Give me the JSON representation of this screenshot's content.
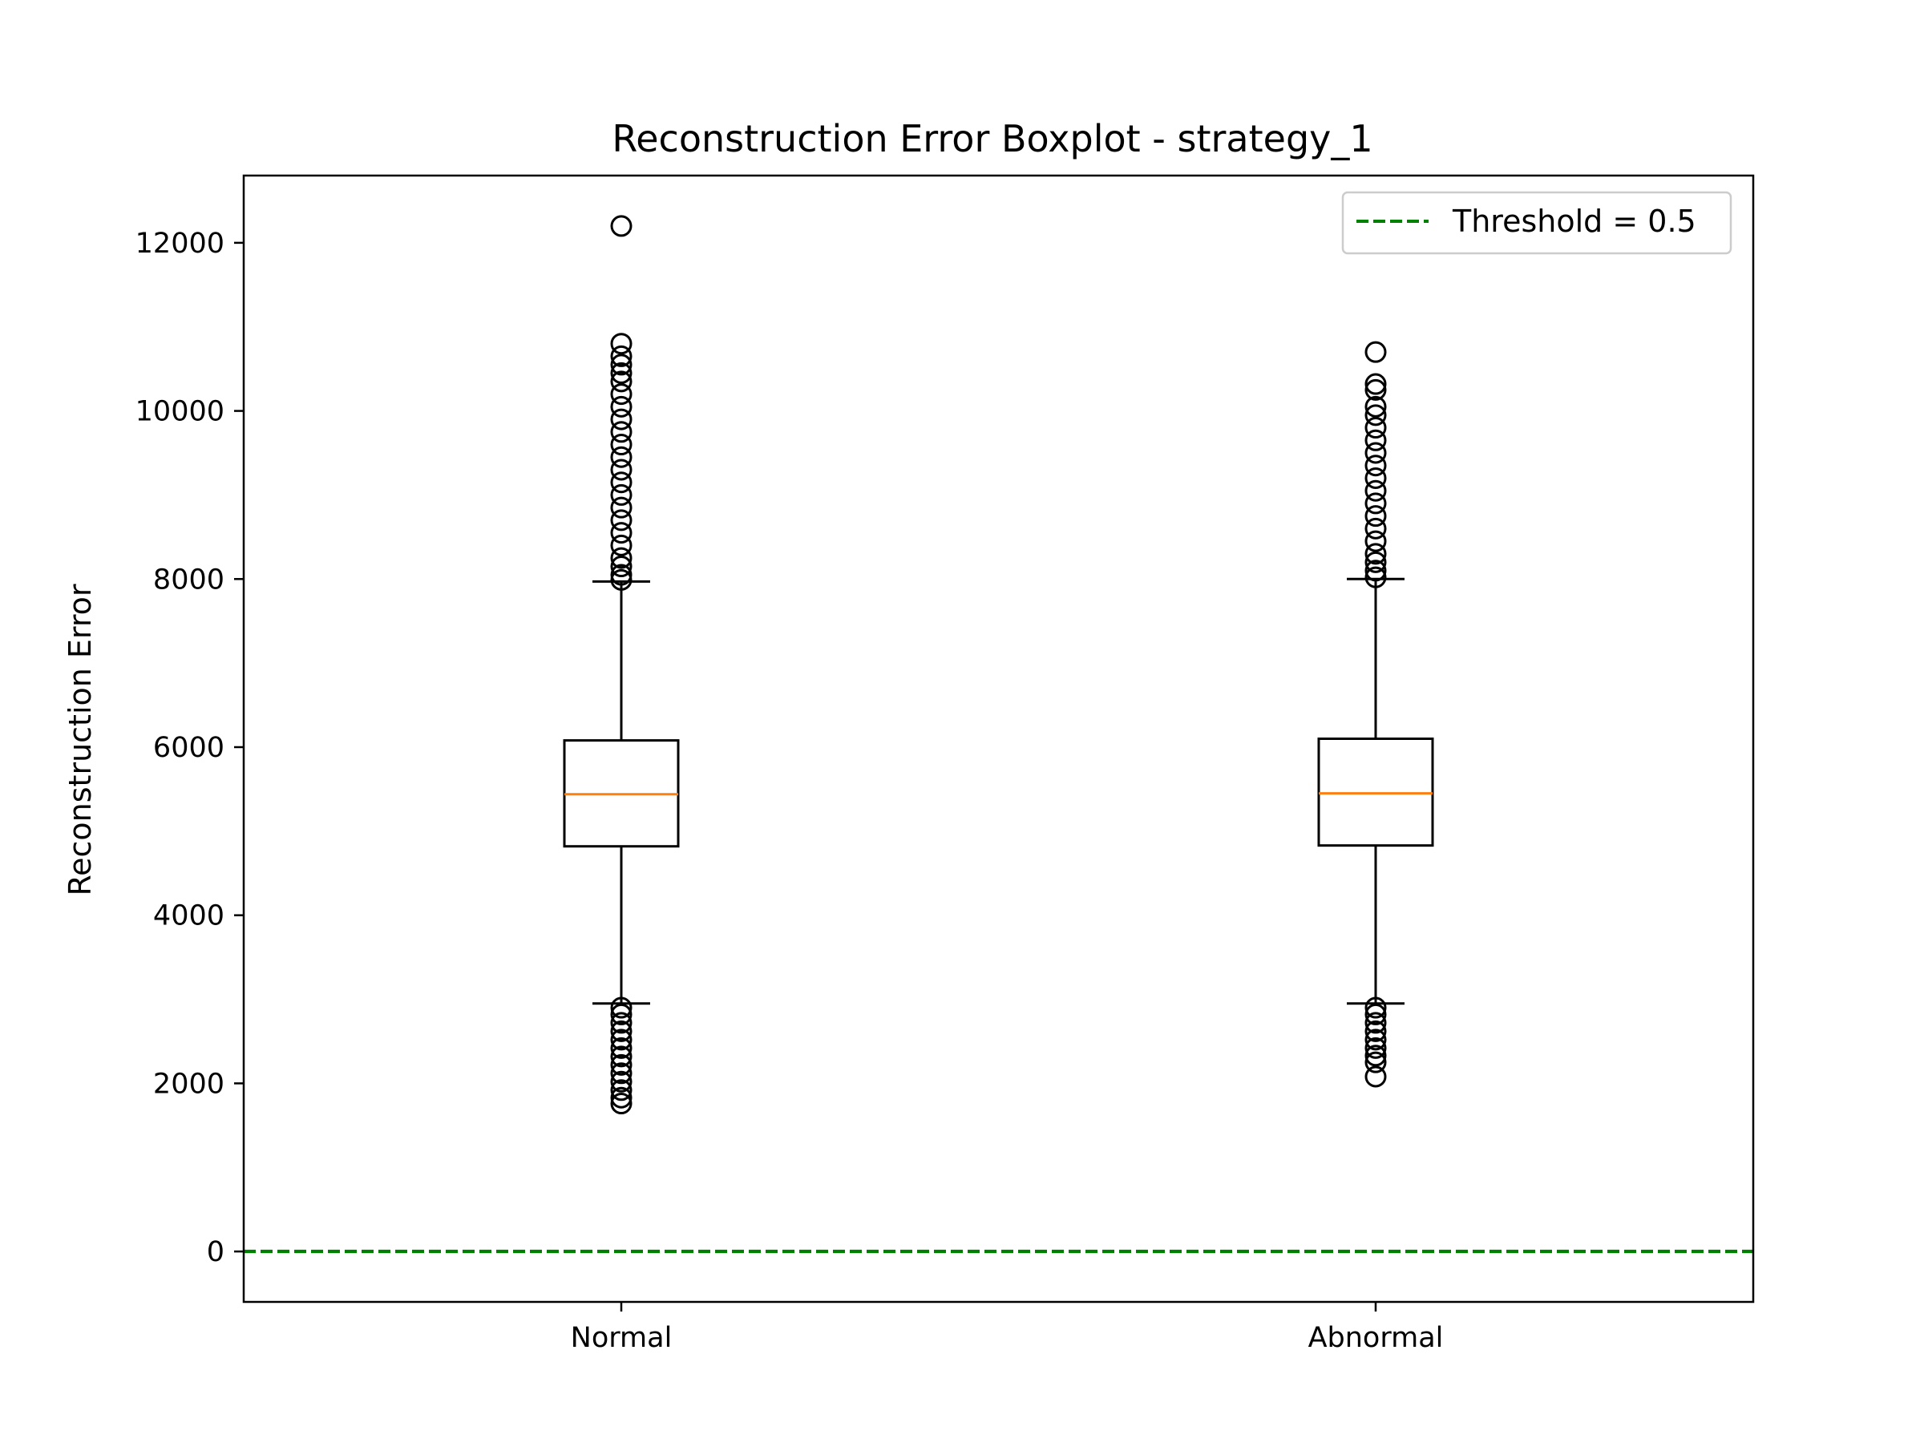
{
  "chart_data": {
    "type": "boxplot",
    "title": "Reconstruction Error Boxplot - strategy_1",
    "xlabel": "",
    "ylabel": "Reconstruction Error",
    "ylim": [
      -600,
      12800
    ],
    "yticks": [
      0,
      2000,
      4000,
      6000,
      8000,
      10000,
      12000
    ],
    "ytick_labels": [
      "0",
      "2000",
      "4000",
      "6000",
      "8000",
      "10000",
      "12000"
    ],
    "categories": [
      "Normal",
      "Abnormal"
    ],
    "boxes": [
      {
        "label": "Normal",
        "whisker_low": 2950,
        "q1": 4820,
        "median": 5440,
        "q3": 6080,
        "whisker_high": 7970,
        "outliers_high": [
          7990,
          8050,
          8150,
          8250,
          8400,
          8550,
          8700,
          8850,
          9000,
          9150,
          9300,
          9450,
          9600,
          9750,
          9900,
          10050,
          10200,
          10350,
          10450,
          10550,
          10650,
          10800,
          12200
        ],
        "outliers_low": [
          2900,
          2820,
          2720,
          2620,
          2520,
          2420,
          2320,
          2220,
          2120,
          2020,
          1920,
          1830,
          1760
        ]
      },
      {
        "label": "Abnormal",
        "whisker_low": 2950,
        "q1": 4830,
        "median": 5450,
        "q3": 6100,
        "whisker_high": 8000,
        "outliers_high": [
          8020,
          8100,
          8200,
          8300,
          8450,
          8600,
          8750,
          8900,
          9050,
          9200,
          9350,
          9500,
          9650,
          9800,
          9950,
          10050,
          10250,
          10320,
          10700
        ],
        "outliers_low": [
          2900,
          2820,
          2720,
          2620,
          2520,
          2420,
          2330,
          2250,
          2080
        ]
      }
    ],
    "threshold": {
      "value": 0.5,
      "label": "Threshold = 0.5",
      "color": "#008000",
      "style": "dashed"
    },
    "legend": {
      "position": "top-right",
      "entries": [
        "Threshold = 0.5"
      ]
    },
    "colors": {
      "median": "#ff7f0e",
      "box": "#000000",
      "threshold": "#008000"
    },
    "grid": false
  }
}
